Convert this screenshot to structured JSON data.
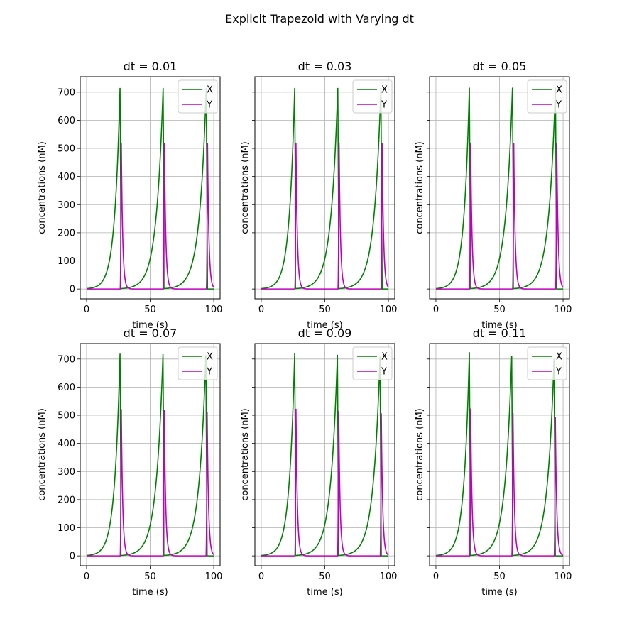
{
  "figure_title": "Explicit Trapezoid with Varying dt",
  "colors": {
    "X": "#008000",
    "Y": "#bf00bf",
    "grid": "#b0b0b0",
    "axes": "#000000"
  },
  "chart_data": [
    {
      "type": "line",
      "title": "dt = 0.01",
      "xlabel": "time (s)",
      "ylabel": "concentrations (nM)",
      "xlim": [
        -5,
        105
      ],
      "ylim": [
        -35,
        755
      ],
      "xticks": [
        0,
        50,
        100
      ],
      "yticks": [
        0,
        100,
        200,
        300,
        400,
        500,
        600,
        700
      ],
      "grid": true,
      "legend": "upper right",
      "series": [
        {
          "name": "X",
          "peaks": [
            [
              26.3,
              715
            ],
            [
              60.2,
              715
            ],
            [
              94.1,
              715
            ]
          ]
        },
        {
          "name": "Y",
          "peaks": [
            [
              27.3,
              520
            ],
            [
              61.2,
              520
            ],
            [
              95.1,
              520
            ]
          ]
        }
      ]
    },
    {
      "type": "line",
      "title": "dt = 0.03",
      "xlabel": "time (s)",
      "ylabel": "concentrations (nM)",
      "xlim": [
        -5,
        105
      ],
      "ylim": [
        -35,
        755
      ],
      "xticks": [
        0,
        50,
        100
      ],
      "yticks": [
        0,
        100,
        200,
        300,
        400,
        500,
        600,
        700
      ],
      "grid": true,
      "legend": "upper right",
      "series": [
        {
          "name": "X",
          "peaks": [
            [
              26.3,
              715
            ],
            [
              60.2,
              715
            ],
            [
              94.1,
              715
            ]
          ]
        },
        {
          "name": "Y",
          "peaks": [
            [
              27.3,
              520
            ],
            [
              61.2,
              520
            ],
            [
              95.1,
              520
            ]
          ]
        }
      ]
    },
    {
      "type": "line",
      "title": "dt = 0.05",
      "xlabel": "time (s)",
      "ylabel": "concentrations (nM)",
      "xlim": [
        -5,
        105
      ],
      "ylim": [
        -35,
        755
      ],
      "xticks": [
        0,
        50,
        100
      ],
      "yticks": [
        0,
        100,
        200,
        300,
        400,
        500,
        600,
        700
      ],
      "grid": true,
      "legend": "upper right",
      "series": [
        {
          "name": "X",
          "peaks": [
            [
              26.3,
              716
            ],
            [
              60.2,
              716
            ],
            [
              94.0,
              716
            ]
          ]
        },
        {
          "name": "Y",
          "peaks": [
            [
              27.3,
              520
            ],
            [
              61.2,
              520
            ],
            [
              95.0,
              520
            ]
          ]
        }
      ]
    },
    {
      "type": "line",
      "title": "dt = 0.07",
      "xlabel": "time (s)",
      "ylabel": "concentrations (nM)",
      "xlim": [
        -5,
        105
      ],
      "ylim": [
        -35,
        755
      ],
      "xticks": [
        0,
        50,
        100
      ],
      "yticks": [
        0,
        100,
        200,
        300,
        400,
        500,
        600,
        700
      ],
      "grid": true,
      "legend": "upper right",
      "series": [
        {
          "name": "X",
          "peaks": [
            [
              26.3,
              719
            ],
            [
              60.1,
              717
            ],
            [
              93.8,
              714
            ]
          ]
        },
        {
          "name": "Y",
          "peaks": [
            [
              27.3,
              522
            ],
            [
              61.1,
              518
            ],
            [
              94.8,
              512
            ]
          ]
        }
      ]
    },
    {
      "type": "line",
      "title": "dt = 0.09",
      "xlabel": "time (s)",
      "ylabel": "concentrations (nM)",
      "xlim": [
        -5,
        105
      ],
      "ylim": [
        -35,
        755
      ],
      "xticks": [
        0,
        50,
        100
      ],
      "yticks": [
        0,
        100,
        200,
        300,
        400,
        500,
        600,
        700
      ],
      "grid": true,
      "legend": "upper right",
      "series": [
        {
          "name": "X",
          "peaks": [
            [
              26.3,
              722
            ],
            [
              59.9,
              715
            ],
            [
              93.4,
              708
            ]
          ]
        },
        {
          "name": "Y",
          "peaks": [
            [
              27.3,
              523
            ],
            [
              60.9,
              515
            ],
            [
              94.4,
              507
            ]
          ]
        }
      ]
    },
    {
      "type": "line",
      "title": "dt = 0.11",
      "xlabel": "time (s)",
      "ylabel": "concentrations (nM)",
      "xlim": [
        -5,
        105
      ],
      "ylim": [
        -35,
        755
      ],
      "xticks": [
        0,
        50,
        100
      ],
      "yticks": [
        0,
        100,
        200,
        300,
        400,
        500,
        600,
        700
      ],
      "grid": true,
      "legend": "upper right",
      "series": [
        {
          "name": "X",
          "peaks": [
            [
              26.3,
              724
            ],
            [
              59.6,
              711
            ],
            [
              92.9,
              700
            ]
          ]
        },
        {
          "name": "Y",
          "peaks": [
            [
              27.3,
              524
            ],
            [
              60.6,
              508
            ],
            [
              93.9,
              495
            ]
          ]
        }
      ]
    }
  ]
}
